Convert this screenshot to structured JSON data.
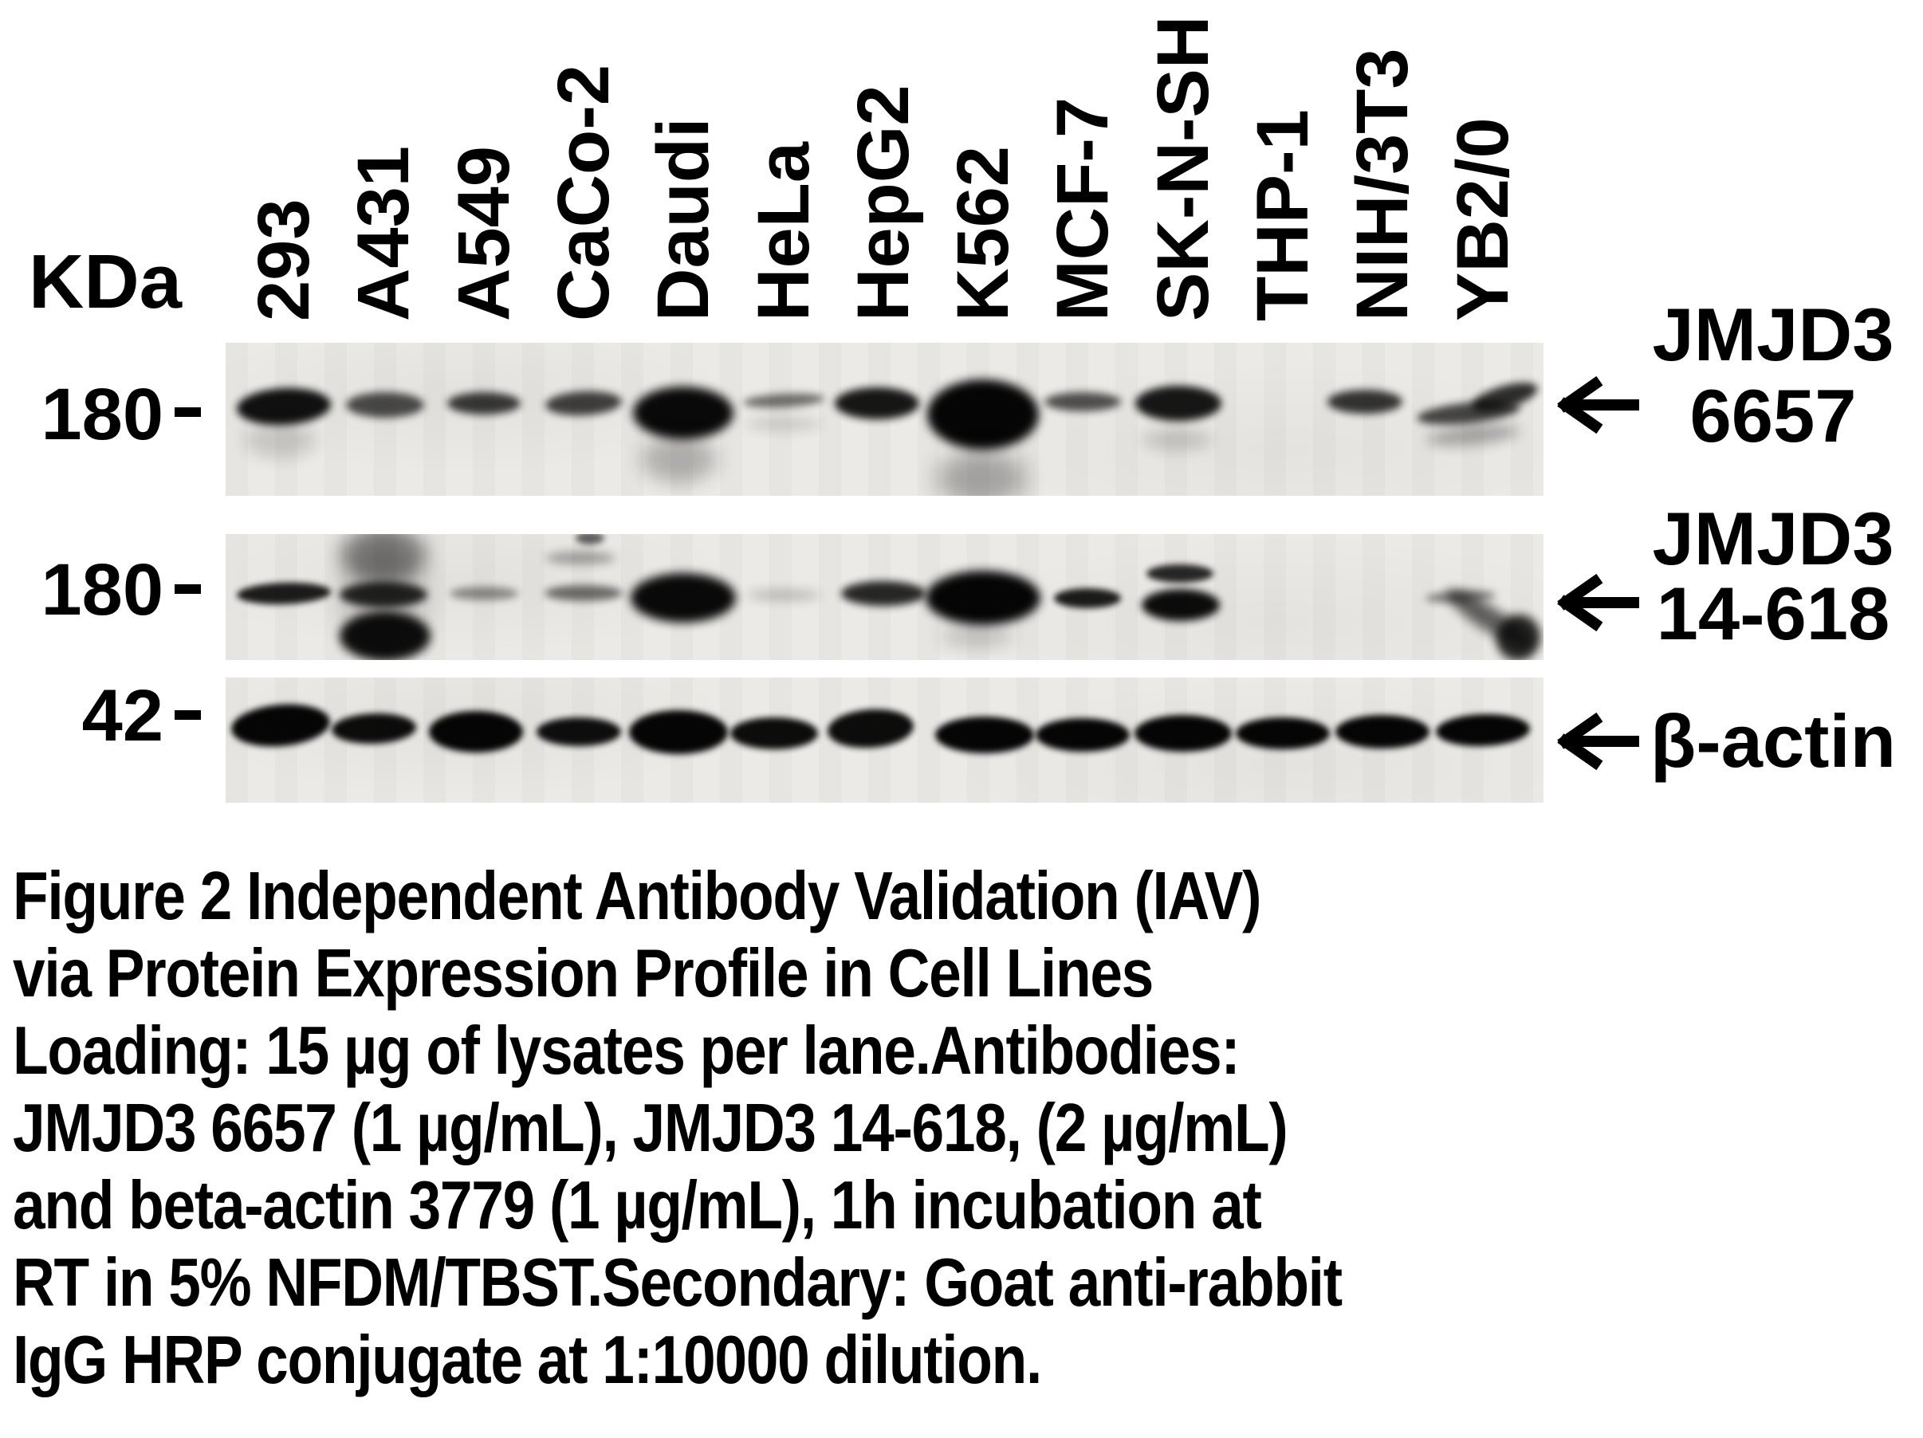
{
  "figure": {
    "unit_label": "KDa",
    "cell_lines": [
      "293",
      "A431",
      "A549",
      "CaCo-2",
      "Daudi",
      "HeLa",
      "HepG2",
      "K562",
      "MCF-7",
      "SK-N-SH",
      "THP-1",
      "NIH/3T3",
      "YB2/0"
    ],
    "arrow_icon": "left-arrow",
    "colors": {
      "band": "#050505",
      "membrane": "#ebeae6",
      "text": "#000000",
      "background": "#ffffff"
    },
    "blots": [
      {
        "antibody_label_lines": [
          "JMJD3",
          "6657"
        ],
        "marker_kda": "180",
        "bands": [
          [
            0,
            0,
            -2,
            118,
            46,
            0.95,
            -3,
            5
          ],
          [
            0,
            -5,
            40,
            90,
            45,
            0.15,
            0,
            10
          ],
          [
            1,
            2,
            -4,
            98,
            32,
            0.7,
            0,
            5
          ],
          [
            2,
            0,
            -6,
            92,
            28,
            0.78,
            0,
            5
          ],
          [
            3,
            0,
            -6,
            96,
            30,
            0.75,
            -3,
            5
          ],
          [
            4,
            0,
            6,
            126,
            66,
            0.98,
            0,
            6
          ],
          [
            4,
            -6,
            64,
            95,
            60,
            0.25,
            0,
            12
          ],
          [
            5,
            0,
            -10,
            102,
            17,
            0.55,
            -3,
            5
          ],
          [
            5,
            0,
            20,
            95,
            16,
            0.15,
            0,
            8
          ],
          [
            6,
            -8,
            -6,
            106,
            40,
            0.92,
            0,
            5
          ],
          [
            7,
            0,
            8,
            140,
            88,
            1,
            0,
            6
          ],
          [
            7,
            -2,
            88,
            112,
            70,
            0.3,
            0,
            14
          ],
          [
            8,
            0,
            -8,
            96,
            24,
            0.68,
            0,
            5
          ],
          [
            9,
            -6,
            -6,
            108,
            44,
            0.92,
            0,
            5
          ],
          [
            9,
            -8,
            40,
            88,
            26,
            0.16,
            0,
            9
          ],
          [
            11,
            -22,
            -8,
            94,
            30,
            0.8,
            0,
            5
          ],
          [
            12,
            -18,
            6,
            130,
            26,
            0.72,
            -6,
            5
          ],
          [
            12,
            28,
            -14,
            85,
            28,
            0.82,
            -16,
            5
          ],
          [
            12,
            -12,
            34,
            115,
            24,
            0.3,
            -6,
            8
          ]
        ]
      },
      {
        "antibody_label_lines": [
          "JMJD3",
          "14-618"
        ],
        "marker_kda": "180",
        "bands": [
          [
            0,
            0,
            -4,
            118,
            27,
            0.9,
            -2,
            4
          ],
          [
            1,
            0,
            -52,
            108,
            72,
            0.42,
            0,
            11
          ],
          [
            1,
            0,
            -2,
            110,
            32,
            0.85,
            0,
            5
          ],
          [
            1,
            2,
            50,
            114,
            62,
            0.96,
            0,
            6
          ],
          [
            1,
            0,
            0,
            100,
            150,
            0.2,
            0,
            16
          ],
          [
            2,
            0,
            -4,
            86,
            17,
            0.42,
            0,
            5
          ],
          [
            3,
            0,
            -4,
            98,
            20,
            0.55,
            0,
            5
          ],
          [
            3,
            -4,
            -48,
            88,
            16,
            0.33,
            0,
            6
          ],
          [
            3,
            8,
            -73,
            36,
            16,
            0.6,
            0,
            4
          ],
          [
            4,
            0,
            2,
            132,
            62,
            0.98,
            0,
            6
          ],
          [
            5,
            0,
            -2,
            92,
            13,
            0.22,
            0,
            7
          ],
          [
            6,
            0,
            -4,
            106,
            31,
            0.85,
            0,
            5
          ],
          [
            7,
            0,
            2,
            144,
            68,
            1,
            0,
            6
          ],
          [
            7,
            -8,
            50,
            92,
            28,
            0.18,
            0,
            11
          ],
          [
            8,
            6,
            2,
            84,
            25,
            0.9,
            0,
            4
          ],
          [
            9,
            -4,
            -29,
            84,
            23,
            0.85,
            0,
            4
          ],
          [
            9,
            -3,
            11,
            98,
            40,
            0.97,
            0,
            5
          ],
          [
            12,
            -28,
            0,
            88,
            15,
            0.45,
            -3,
            5
          ],
          [
            12,
            8,
            28,
            125,
            30,
            0.6,
            33,
            7
          ],
          [
            12,
            45,
            52,
            55,
            58,
            0.85,
            20,
            6
          ]
        ]
      },
      {
        "antibody_label_lines": [
          "β-actin"
        ],
        "marker_kda": "42",
        "bands": [
          [
            0,
            -4,
            -6,
            124,
            52,
            1,
            -5,
            4
          ],
          [
            1,
            -12,
            -2,
            106,
            38,
            0.97,
            -2,
            4
          ],
          [
            2,
            -10,
            2,
            118,
            52,
            1,
            0,
            4
          ],
          [
            3,
            -6,
            2,
            106,
            36,
            0.96,
            0,
            4
          ],
          [
            4,
            -6,
            2,
            124,
            55,
            1,
            0,
            4
          ],
          [
            5,
            -12,
            4,
            110,
            40,
            0.97,
            0,
            4
          ],
          [
            6,
            -16,
            -2,
            108,
            48,
            0.97,
            -4,
            4
          ],
          [
            7,
            2,
            6,
            124,
            46,
            1,
            0,
            4
          ],
          [
            8,
            0,
            6,
            118,
            42,
            1,
            0,
            4
          ],
          [
            9,
            0,
            4,
            122,
            46,
            1,
            0,
            4
          ],
          [
            10,
            0,
            4,
            118,
            40,
            1,
            0,
            4
          ],
          [
            11,
            0,
            2,
            118,
            42,
            1,
            0,
            4
          ],
          [
            12,
            0,
            0,
            118,
            40,
            1,
            -2,
            4
          ]
        ]
      }
    ],
    "caption_lines": [
      "Figure 2 Independent Antibody Validation (IAV)",
      "via Protein Expression Profile in Cell Lines",
      "Loading: 15 µg of lysates per lane.Antibodies:",
      "JMJD3 6657 (1 µg/mL), JMJD3 14-618, (2 µg/mL)",
      "and beta-actin 3779 (1 µg/mL), 1h incubation at",
      "RT in 5% NFDM/TBST.Secondary: Goat anti-rabbit",
      "IgG HRP conjugate at 1:10000 dilution."
    ]
  }
}
